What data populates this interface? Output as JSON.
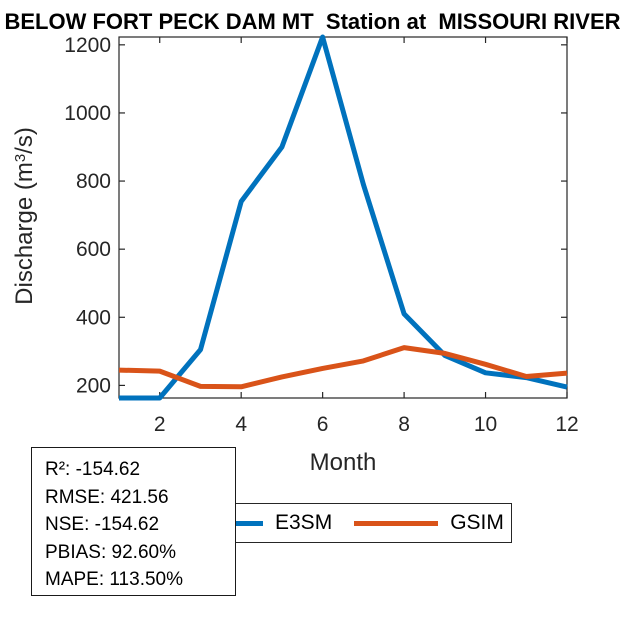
{
  "title": "BELOW FORT PECK DAM MT  Station at  MISSOURI RIVER",
  "chart_data": {
    "type": "line",
    "title": "BELOW FORT PECK DAM MT  Station at  MISSOURI RIVER",
    "x": [
      1,
      2,
      3,
      4,
      5,
      6,
      7,
      8,
      9,
      10,
      11,
      12
    ],
    "series": [
      {
        "name": "E3SM",
        "color": "#0072BD",
        "values": [
          163,
          163,
          305,
          740,
          900,
          1223,
          790,
          410,
          288,
          237,
          223,
          195
        ]
      },
      {
        "name": "GSIM",
        "color": "#D95319",
        "values": [
          245,
          242,
          197,
          196,
          225,
          250,
          272,
          311,
          294,
          262,
          226,
          236
        ]
      }
    ],
    "xlabel": "Month",
    "ylabel": "Discharge (m³/s)",
    "xlim": [
      1,
      12
    ],
    "ylim": [
      163,
      1223
    ],
    "xticks": [
      2,
      4,
      6,
      8,
      10,
      12
    ],
    "yticks": [
      200,
      400,
      600,
      800,
      1000,
      1200
    ],
    "grid": false,
    "legend_position": "below"
  },
  "ylabel_parts": {
    "pre": "Discharge (m",
    "sup": "3",
    "post": "/s)"
  },
  "stats_box": {
    "lines": [
      "R²: -154.62",
      "RMSE: 421.56",
      "NSE: -154.62",
      "PBIAS: 92.60%",
      "MAPE: 113.50%"
    ]
  },
  "legend": {
    "items": [
      {
        "label": "E3SM",
        "color": "#0072BD"
      },
      {
        "label": "GSIM",
        "color": "#D95319"
      }
    ]
  },
  "colors": {
    "axis": "#262626",
    "background": "#ffffff"
  }
}
